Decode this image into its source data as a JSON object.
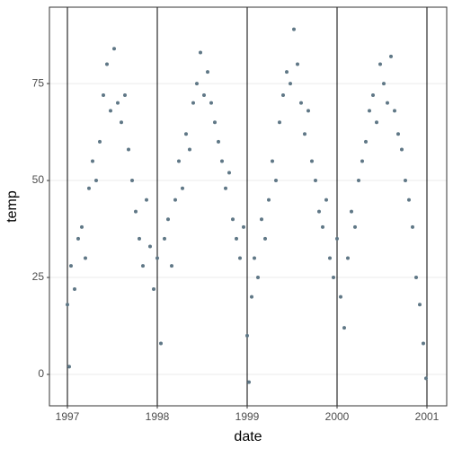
{
  "chart_data": {
    "type": "scatter",
    "x_label": "date",
    "y_label": "temp",
    "color": "#5f7786",
    "x": [
      1997.0,
      1997.02,
      1997.04,
      1997.08,
      1997.12,
      1997.16,
      1997.2,
      1997.24,
      1997.28,
      1997.32,
      1997.36,
      1997.4,
      1997.44,
      1997.48,
      1997.52,
      1997.56,
      1997.6,
      1997.64,
      1997.68,
      1997.72,
      1997.76,
      1997.8,
      1997.84,
      1997.88,
      1997.92,
      1997.96,
      1998.0,
      1998.04,
      1998.08,
      1998.12,
      1998.16,
      1998.2,
      1998.24,
      1998.28,
      1998.32,
      1998.36,
      1998.4,
      1998.44,
      1998.48,
      1998.52,
      1998.56,
      1998.6,
      1998.64,
      1998.68,
      1998.72,
      1998.76,
      1998.8,
      1998.84,
      1998.88,
      1998.92,
      1998.96,
      1999.0,
      1999.02,
      1999.05,
      1999.08,
      1999.12,
      1999.16,
      1999.2,
      1999.24,
      1999.28,
      1999.32,
      1999.36,
      1999.4,
      1999.44,
      1999.48,
      1999.52,
      1999.56,
      1999.6,
      1999.64,
      1999.68,
      1999.72,
      1999.76,
      1999.8,
      1999.84,
      1999.88,
      1999.92,
      1999.96,
      2000.0,
      2000.04,
      2000.08,
      2000.12,
      2000.16,
      2000.2,
      2000.24,
      2000.28,
      2000.32,
      2000.36,
      2000.4,
      2000.44,
      2000.48,
      2000.52,
      2000.56,
      2000.6,
      2000.64,
      2000.68,
      2000.72,
      2000.76,
      2000.8,
      2000.84,
      2000.88,
      2000.92,
      2000.96,
      2000.99
    ],
    "values": [
      18,
      2,
      28,
      22,
      35,
      38,
      30,
      48,
      55,
      50,
      60,
      72,
      80,
      68,
      84,
      70,
      65,
      72,
      58,
      50,
      42,
      35,
      28,
      45,
      33,
      22,
      30,
      8,
      35,
      40,
      28,
      45,
      55,
      48,
      62,
      58,
      70,
      75,
      83,
      72,
      78,
      70,
      65,
      60,
      55,
      48,
      52,
      40,
      35,
      30,
      38,
      10,
      -2,
      20,
      30,
      25,
      40,
      35,
      45,
      55,
      50,
      65,
      72,
      78,
      75,
      89,
      80,
      70,
      62,
      68,
      55,
      50,
      42,
      38,
      45,
      30,
      25,
      35,
      20,
      12,
      30,
      42,
      38,
      50,
      55,
      60,
      68,
      72,
      65,
      80,
      75,
      70,
      82,
      68,
      62,
      58,
      50,
      45,
      38,
      25,
      18,
      8,
      -1
    ],
    "xlim": [
      1996.8,
      2001.22
    ],
    "ylim": [
      -8.1,
      94.7
    ],
    "xticks": [
      1997,
      1998,
      1999,
      2000,
      2001
    ],
    "yticks": [
      0,
      25,
      50,
      75
    ],
    "vlines": [
      1997,
      1998,
      1999,
      2000,
      2001
    ],
    "grid": true
  }
}
